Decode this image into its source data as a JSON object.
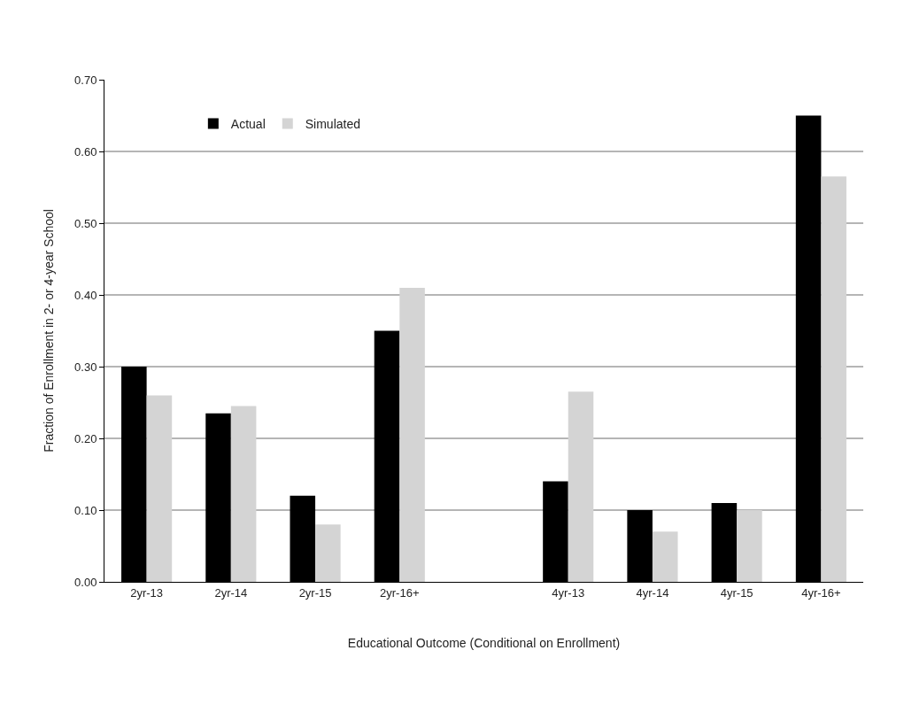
{
  "chart_data": {
    "type": "bar",
    "xlabel": "Educational Outcome (Conditional on Enrollment)",
    "ylabel": "Fraction of Enrollment in 2- or 4-year School",
    "categories": [
      "2yr-13",
      "2yr-14",
      "2yr-15",
      "2yr-16+",
      null,
      "4yr-13",
      "4yr-14",
      "4yr-15",
      "4yr-16+"
    ],
    "series": [
      {
        "name": "Actual",
        "color": "#000000",
        "values": [
          0.3,
          0.235,
          0.12,
          0.35,
          null,
          0.14,
          0.1,
          0.11,
          0.65
        ]
      },
      {
        "name": "Simulated",
        "color": "#d4d4d4",
        "values": [
          0.26,
          0.245,
          0.08,
          0.41,
          null,
          0.265,
          0.07,
          0.1,
          0.565
        ]
      }
    ],
    "ylim": [
      0,
      0.7
    ],
    "yticks": [
      {
        "value": 0,
        "label": "0.00"
      },
      {
        "value": 0.1,
        "label": "0.10"
      },
      {
        "value": 0.2,
        "label": "0.20"
      },
      {
        "value": 0.3,
        "label": "0.30"
      },
      {
        "value": 0.4,
        "label": "0.40"
      },
      {
        "value": 0.5,
        "label": "0.50"
      },
      {
        "value": 0.6,
        "label": "0.60"
      },
      {
        "value": 0.7,
        "label": "0.70"
      }
    ],
    "grid": "y",
    "legend": "top left"
  }
}
